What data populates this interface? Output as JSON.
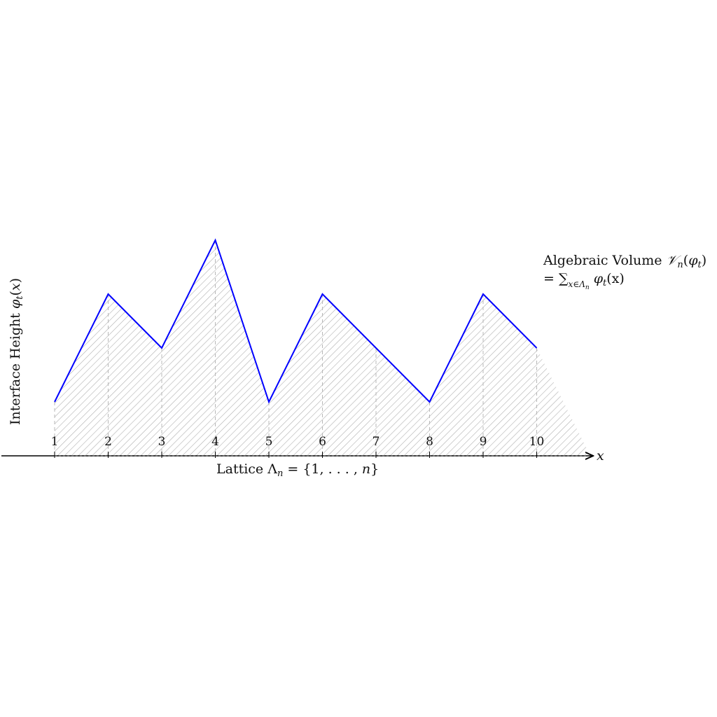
{
  "diagram": {
    "x_axis_symbol": "x",
    "x_axis_label": {
      "prefix": "Lattice ",
      "lambda": "Λ",
      "sub": "n",
      "rest": " = {1, . . . , ",
      "n": "n",
      "close": "}"
    },
    "y_axis_label": {
      "prefix": "Interface Height ",
      "phi": "φ",
      "sub": "t",
      "open": "(",
      "x": "x",
      "close": ")"
    },
    "volume_label": {
      "line1_prefix": "Algebraic Volume ",
      "V": "𝒱",
      "V_sub": "n",
      "line1_open": "(",
      "phi": "φ",
      "phi_sub": "t",
      "line1_close": ")",
      "line2_prefix": "= ",
      "sum": "∑",
      "sum_sub": "x∈Λ",
      "sum_sub_n": "n",
      "line2_phi": " φ",
      "line2_phi_sub": "t",
      "line2_rest": "(x)"
    },
    "tick_labels": [
      "1",
      "2",
      "3",
      "4",
      "5",
      "6",
      "7",
      "8",
      "9",
      "10"
    ],
    "heights": [
      1,
      3,
      2,
      4,
      1,
      3,
      2,
      1,
      3,
      2
    ],
    "tail_endpoint": {
      "x": 11,
      "y": 0
    },
    "colors": {
      "interface": "#0000ff",
      "hatch": "#b0b0b0",
      "guides": "#b8b8b8",
      "axis": "#000000"
    }
  }
}
